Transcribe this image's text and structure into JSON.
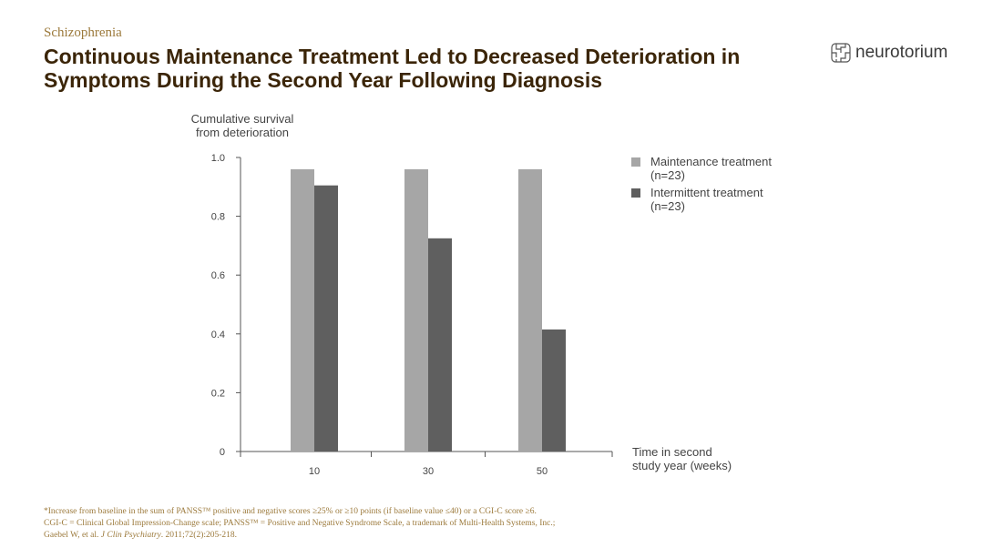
{
  "header": {
    "category": "Schizophrenia",
    "title": "Continuous Maintenance Treatment Led to Decreased Deterioration in Symptoms During the Second Year Following Diagnosis"
  },
  "logo": {
    "text": "neurotorium",
    "icon": "brain-maze-icon"
  },
  "chart_data": {
    "type": "bar",
    "title": "",
    "ylabel_line1": "Cumulative survival",
    "ylabel_line2": "from deterioration",
    "xlabel_line1": "Time in second",
    "xlabel_line2": "study year (weeks)",
    "categories": [
      "10",
      "30",
      "50"
    ],
    "ylim": [
      0,
      1.0
    ],
    "yticks": [
      "0",
      "0.2",
      "0.4",
      "0.6",
      "0.8",
      "1.0"
    ],
    "ytick_values": [
      0,
      0.2,
      0.4,
      0.6,
      0.8,
      1.0
    ],
    "series": [
      {
        "name": "Maintenance treatment",
        "n": "(n=23)",
        "color": "#a6a6a6",
        "values": [
          0.96,
          0.96,
          0.96
        ]
      },
      {
        "name": "Intermittent treatment",
        "n": "(n=23)",
        "color": "#5f5f5f",
        "values": [
          0.905,
          0.725,
          0.415
        ]
      }
    ],
    "legend_position": "right"
  },
  "footer": {
    "line1": "*Increase from baseline in the sum of PANSS™ positive and negative scores ≥25% or ≥10 points (if baseline value ≤40) or a CGI-C score ≥6.",
    "line2": "CGI-C = Clinical Global Impression-Change scale; PANSS™ = Positive and Negative Syndrome Scale, a trademark of Multi-Health Systems, Inc.;",
    "line3_prefix": "Gaebel W, et al. ",
    "line3_journal": "J Clin Psychiatry",
    "line3_suffix": ". 2011;72(2):205-218."
  }
}
